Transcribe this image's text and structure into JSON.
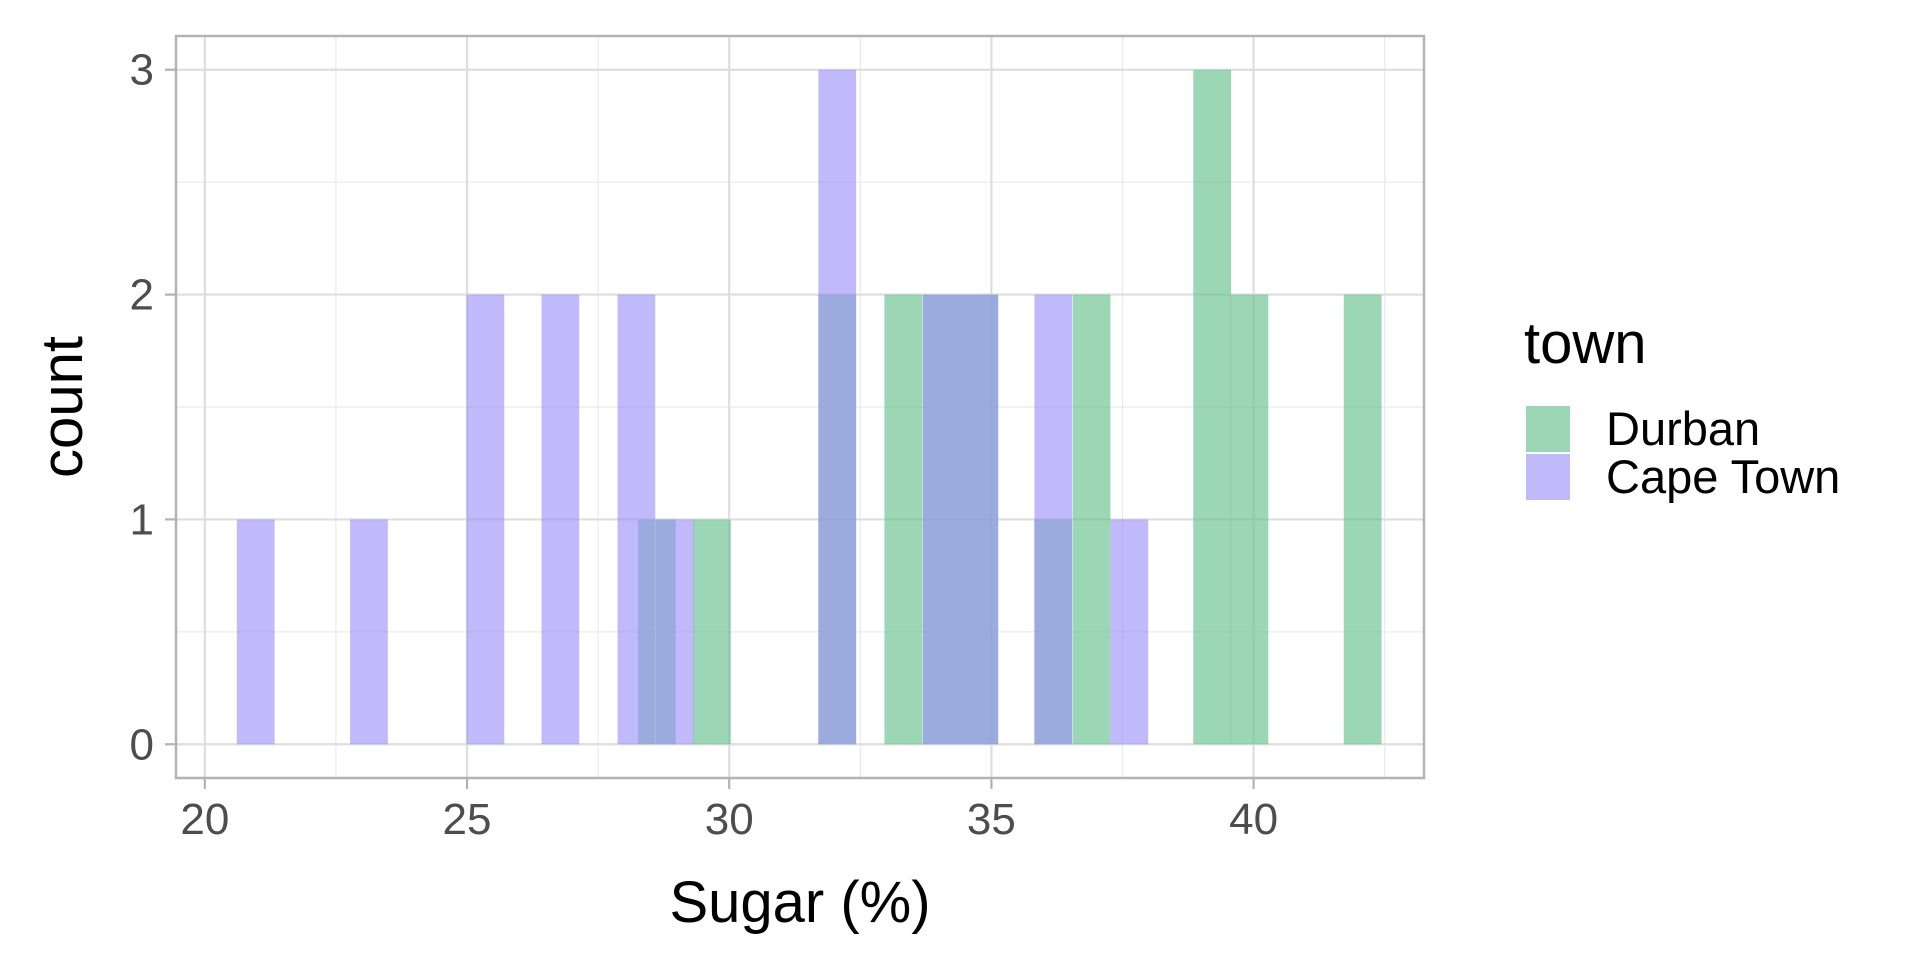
{
  "chart_data": {
    "type": "histogram",
    "xlabel": "Sugar (%)",
    "ylabel": "count",
    "xlim": [
      19.45,
      43.25
    ],
    "ylim": [
      -0.15,
      3.15
    ],
    "x_ticks": [
      20,
      25,
      30,
      35,
      40
    ],
    "x_tick_labels": [
      "20",
      "25",
      "30",
      "35",
      "40"
    ],
    "y_ticks": [
      0,
      1,
      2,
      3
    ],
    "y_tick_labels": [
      "0",
      "1",
      "2",
      "3"
    ],
    "grid": true,
    "legend": {
      "title": "town",
      "position": "right"
    },
    "bin_width": 0.72,
    "series": [
      {
        "name": "Durban",
        "color": "#66c28c",
        "opacity": 0.65,
        "bins": [
          {
            "x": 28.62,
            "count": 1
          },
          {
            "x": 29.67,
            "count": 1
          },
          {
            "x": 32.06,
            "count": 2
          },
          {
            "x": 33.32,
            "count": 2
          },
          {
            "x": 34.05,
            "count": 2
          },
          {
            "x": 34.77,
            "count": 2
          },
          {
            "x": 36.18,
            "count": 1
          },
          {
            "x": 36.91,
            "count": 2
          },
          {
            "x": 39.21,
            "count": 3
          },
          {
            "x": 39.92,
            "count": 2
          },
          {
            "x": 42.08,
            "count": 2
          }
        ]
      },
      {
        "name": "Cape Town",
        "color": "#9b8ff7",
        "opacity": 0.62,
        "bins": [
          {
            "x": 20.97,
            "count": 1
          },
          {
            "x": 23.13,
            "count": 1
          },
          {
            "x": 25.35,
            "count": 2
          },
          {
            "x": 26.78,
            "count": 2
          },
          {
            "x": 28.23,
            "count": 2
          },
          {
            "x": 28.96,
            "count": 1
          },
          {
            "x": 32.06,
            "count": 3
          },
          {
            "x": 34.05,
            "count": 2
          },
          {
            "x": 34.77,
            "count": 2
          },
          {
            "x": 36.18,
            "count": 2
          },
          {
            "x": 37.63,
            "count": 1
          }
        ]
      }
    ]
  }
}
